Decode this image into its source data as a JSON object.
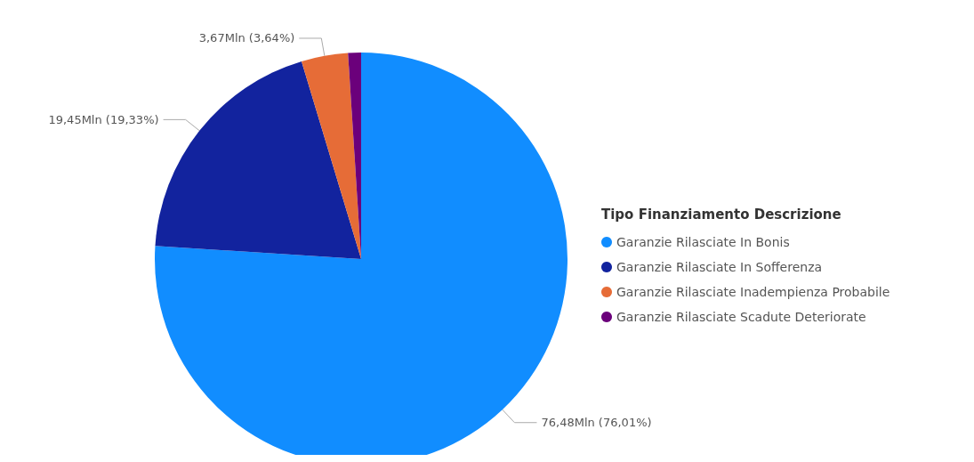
{
  "chart_data": {
    "type": "pie",
    "legend_title": "Tipo Finanziamento Descrizione",
    "categories": [
      "Garanzie Rilasciate In Bonis",
      "Garanzie Rilasciate In Sofferenza",
      "Garanzie Rilasciate Inadempienza Probabile",
      "Garanzie Rilasciate Scadute Deteriorate"
    ],
    "values": [
      76.48,
      19.45,
      3.67,
      1.02
    ],
    "value_labels": [
      "76,48Mln (76,01%)",
      "19,45Mln (19,33%)",
      "3,67Mln (3,64%)",
      null
    ],
    "colors": [
      "#118dff",
      "#12239e",
      "#e66c37",
      "#6b007b"
    ],
    "legend": "right"
  }
}
